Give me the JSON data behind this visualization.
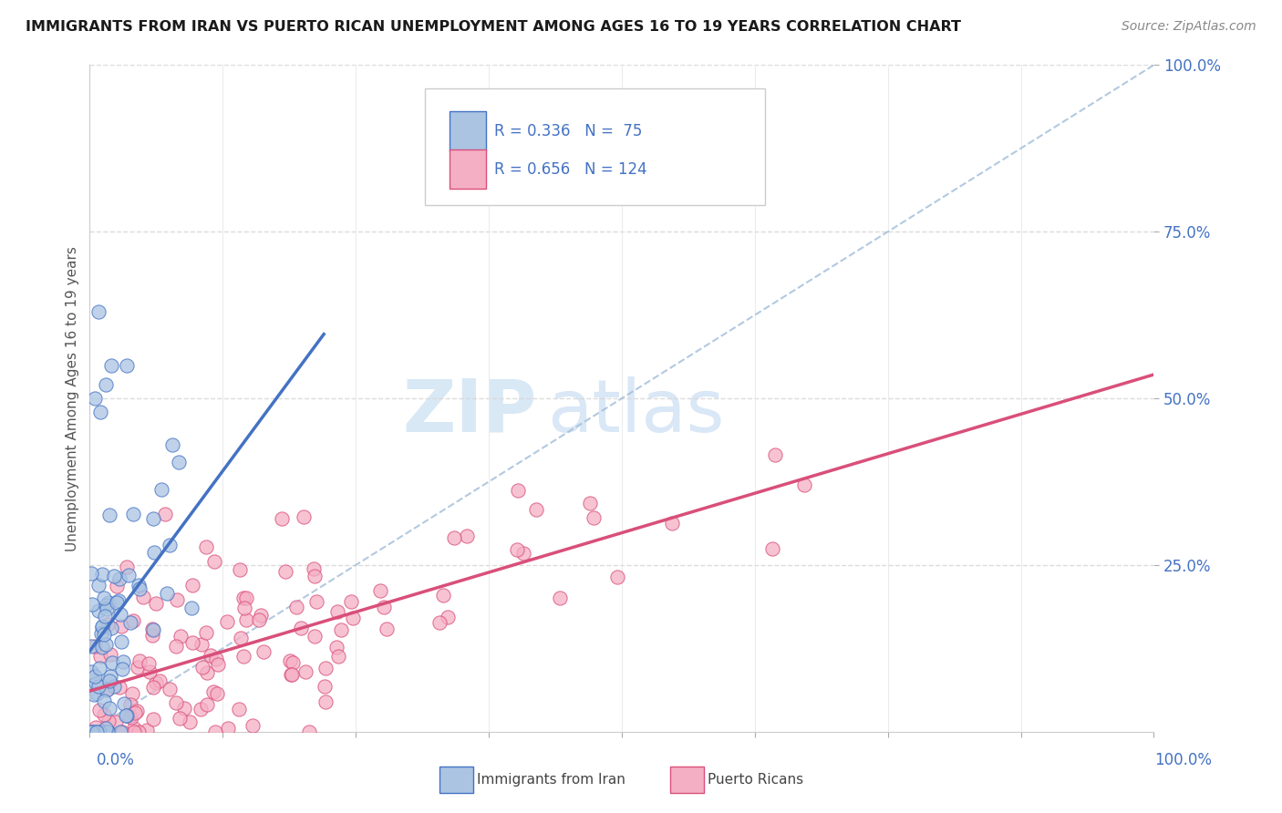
{
  "title": "IMMIGRANTS FROM IRAN VS PUERTO RICAN UNEMPLOYMENT AMONG AGES 16 TO 19 YEARS CORRELATION CHART",
  "source": "Source: ZipAtlas.com",
  "ylabel": "Unemployment Among Ages 16 to 19 years",
  "xlim": [
    0,
    1
  ],
  "ylim": [
    0,
    1
  ],
  "y_tick_positions": [
    0.25,
    0.5,
    0.75,
    1.0
  ],
  "watermark_zip": "ZIP",
  "watermark_atlas": "atlas",
  "blue_color": "#aac4e2",
  "pink_color": "#f5afc5",
  "blue_line_color": "#4472c4",
  "pink_line_color": "#d94f7a",
  "ref_line_color": "#a0bcd8",
  "background_color": "#ffffff",
  "grid_color": "#d8d8d8",
  "title_color": "#1a1a1a",
  "axis_label_color": "#555555",
  "tick_label_color": "#4472c4",
  "legend_text_color": "#4472c4",
  "legend_label_color": "#333333"
}
